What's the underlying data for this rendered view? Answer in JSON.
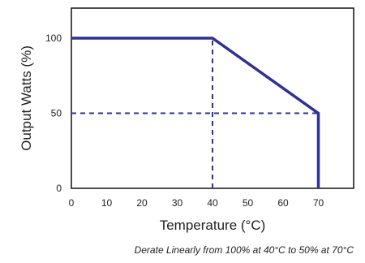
{
  "chart_data": {
    "type": "line",
    "xlabel": "Temperature (°C)",
    "ylabel": "Output Watts (%)",
    "caption": "Derate Linearly from 100% at 40°C to 50% at 70°C",
    "xlim": [
      0,
      80
    ],
    "ylim": [
      0,
      120
    ],
    "x_ticks": [
      "0",
      "10",
      "20",
      "30",
      "40",
      "50",
      "60",
      "70"
    ],
    "y_ticks": [
      "0",
      "50",
      "100"
    ],
    "series": [
      {
        "x": [
          0,
          40,
          70,
          70
        ],
        "y": [
          100,
          100,
          50,
          0
        ],
        "color": "#2e3192"
      }
    ],
    "reference_lines": [
      {
        "x": [
          40,
          40
        ],
        "y": [
          0,
          100
        ]
      },
      {
        "x": [
          0,
          70
        ],
        "y": [
          50,
          50
        ]
      }
    ],
    "grid": false
  }
}
